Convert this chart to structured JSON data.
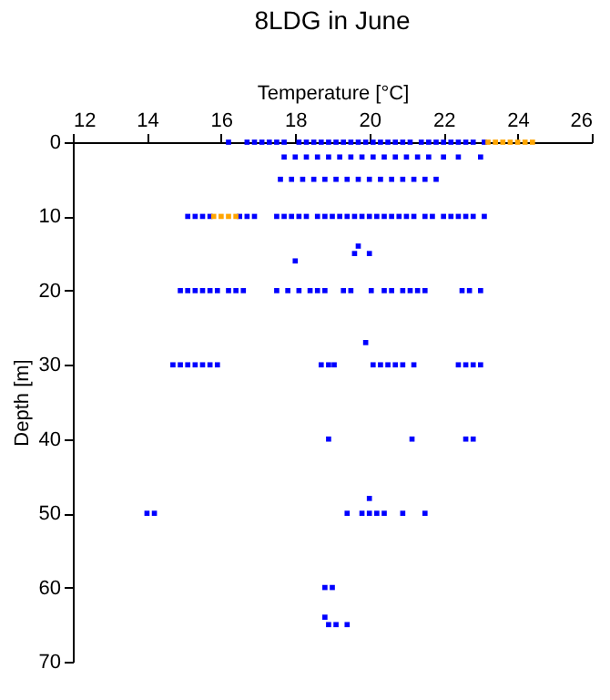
{
  "chart_data": {
    "type": "scatter",
    "title": "8LDG in June",
    "xlabel": "Temperature [°C]",
    "ylabel": "Depth [m]",
    "xlim": [
      12,
      26
    ],
    "xticks": [
      12,
      14,
      16,
      18,
      20,
      22,
      24,
      26
    ],
    "ylim": [
      70,
      0
    ],
    "yticks": [
      0,
      10,
      20,
      30,
      40,
      50,
      60,
      70
    ],
    "grid": false,
    "marker": "square",
    "series": [
      {
        "color": "#0000ff",
        "x": [
          16.2,
          16.7,
          16.9,
          17.1,
          17.3,
          17.5,
          17.7,
          18.1,
          18.3,
          18.5,
          18.7,
          18.9,
          19.1,
          19.3,
          19.5,
          19.7,
          19.9,
          20.1,
          20.3,
          20.5,
          20.7,
          20.9,
          21.1,
          21.4,
          21.6,
          21.8,
          22.0,
          22.2,
          22.4,
          22.6,
          22.8,
          23.1,
          17.7,
          18.0,
          18.3,
          18.6,
          18.9,
          19.2,
          19.5,
          19.8,
          20.1,
          20.4,
          20.7,
          21.0,
          21.3,
          21.6,
          22.0,
          22.4,
          23.0,
          17.6,
          17.9,
          18.2,
          18.5,
          18.8,
          19.1,
          19.4,
          19.7,
          20.0,
          20.3,
          20.6,
          20.9,
          21.2,
          21.5,
          21.8,
          15.1,
          15.3,
          15.5,
          15.7,
          16.5,
          16.7,
          16.9,
          17.5,
          17.7,
          17.9,
          18.1,
          18.3,
          18.6,
          18.8,
          19.0,
          19.2,
          19.4,
          19.6,
          19.8,
          20.0,
          20.2,
          20.4,
          20.6,
          20.8,
          21.0,
          21.2,
          21.5,
          21.7,
          22.0,
          22.2,
          22.4,
          22.6,
          22.8,
          23.1,
          19.7,
          19.6,
          20.0,
          18.0,
          14.9,
          15.1,
          15.3,
          15.5,
          15.7,
          15.9,
          16.2,
          16.4,
          16.6,
          17.5,
          17.8,
          18.1,
          18.4,
          18.6,
          18.8,
          19.3,
          19.5,
          20.05,
          20.4,
          20.6,
          20.9,
          21.1,
          21.3,
          21.5,
          22.5,
          22.7,
          23.0,
          19.9,
          14.7,
          14.9,
          15.1,
          15.3,
          15.5,
          15.7,
          15.9,
          18.7,
          18.9,
          19.05,
          20.1,
          20.3,
          20.5,
          20.7,
          20.9,
          21.2,
          22.4,
          22.6,
          22.8,
          23.0,
          18.9,
          21.15,
          22.6,
          22.8,
          20.0,
          14.0,
          14.2,
          19.4,
          19.8,
          20.0,
          20.2,
          20.4,
          20.9,
          21.5,
          18.8,
          19.0,
          18.8,
          18.9,
          19.1,
          19.4
        ],
        "values": [
          0,
          0,
          0,
          0,
          0,
          0,
          0,
          0,
          0,
          0,
          0,
          0,
          0,
          0,
          0,
          0,
          0,
          0,
          0,
          0,
          0,
          0,
          0,
          0,
          0,
          0,
          0,
          0,
          0,
          0,
          0,
          0,
          2,
          2,
          2,
          2,
          2,
          2,
          2,
          2,
          2,
          2,
          2,
          2,
          2,
          2,
          2,
          2,
          2,
          5,
          5,
          5,
          5,
          5,
          5,
          5,
          5,
          5,
          5,
          5,
          5,
          5,
          5,
          5,
          10,
          10,
          10,
          10,
          10,
          10,
          10,
          10,
          10,
          10,
          10,
          10,
          10,
          10,
          10,
          10,
          10,
          10,
          10,
          10,
          10,
          10,
          10,
          10,
          10,
          10,
          10,
          10,
          10,
          10,
          10,
          10,
          10,
          10,
          14,
          15,
          15,
          16,
          20,
          20,
          20,
          20,
          20,
          20,
          20,
          20,
          20,
          20,
          20,
          20,
          20,
          20,
          20,
          20,
          20,
          20,
          20,
          20,
          20,
          20,
          20,
          20,
          20,
          20,
          20,
          27,
          30,
          30,
          30,
          30,
          30,
          30,
          30,
          30,
          30,
          30,
          30,
          30,
          30,
          30,
          30,
          30,
          30,
          30,
          30,
          30,
          40,
          40,
          40,
          40,
          48,
          50,
          50,
          50,
          50,
          50,
          50,
          50,
          50,
          50,
          60,
          60,
          64,
          65,
          65,
          65
        ]
      },
      {
        "color": "#ffa500",
        "x": [
          23.2,
          23.4,
          23.6,
          23.8,
          24.0,
          24.2,
          24.4,
          15.8,
          16.0,
          16.2,
          16.4
        ],
        "values": [
          0,
          0,
          0,
          0,
          0,
          0,
          0,
          10,
          10,
          10,
          10
        ]
      }
    ]
  }
}
